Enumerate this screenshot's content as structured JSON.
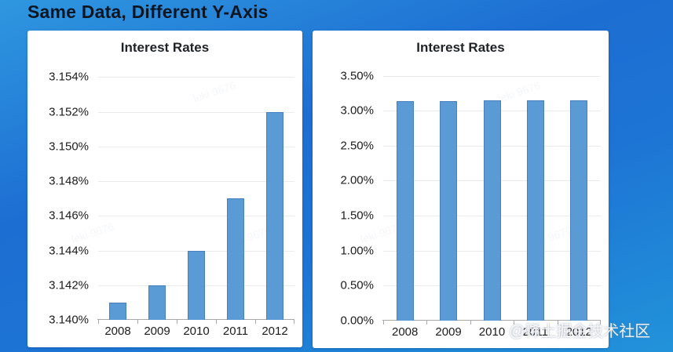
{
  "page": {
    "title": "Same Data, Different Y-Axis"
  },
  "watermark": {
    "community": "@稀土掘金技术社区",
    "ghost": "leki 9676"
  },
  "chart_data": [
    {
      "type": "bar",
      "title": "Interest Rates",
      "categories": [
        "2008",
        "2009",
        "2010",
        "2011",
        "2012"
      ],
      "values": [
        3.141,
        3.142,
        3.144,
        3.147,
        3.152
      ],
      "unit": "%",
      "xlabel": "",
      "ylabel": "",
      "ylim": [
        3.14,
        3.1546
      ],
      "ytick_values": [
        3.14,
        3.142,
        3.144,
        3.146,
        3.148,
        3.15,
        3.152,
        3.154
      ],
      "ytick_labels": [
        "3.140%",
        "3.142%",
        "3.144%",
        "3.146%",
        "3.148%",
        "3.150%",
        "3.152%",
        "3.154%"
      ],
      "grid": true,
      "legend": "none",
      "bar_color": "#5b9bd5",
      "bar_border_color": "#4a7fbe"
    },
    {
      "type": "bar",
      "title": "Interest Rates",
      "categories": [
        "2008",
        "2009",
        "2010",
        "2011",
        "2012"
      ],
      "values": [
        3.141,
        3.142,
        3.144,
        3.147,
        3.152
      ],
      "unit": "%",
      "xlabel": "",
      "ylabel": "",
      "ylim": [
        0,
        3.63
      ],
      "ytick_values": [
        0.0,
        0.5,
        1.0,
        1.5,
        2.0,
        2.5,
        3.0,
        3.5
      ],
      "ytick_labels": [
        "0.00%",
        "0.50%",
        "1.00%",
        "1.50%",
        "2.00%",
        "2.50%",
        "3.00%",
        "3.50%"
      ],
      "grid": true,
      "legend": "none",
      "bar_color": "#5b9bd5",
      "bar_border_color": "#4a7fbe"
    }
  ]
}
